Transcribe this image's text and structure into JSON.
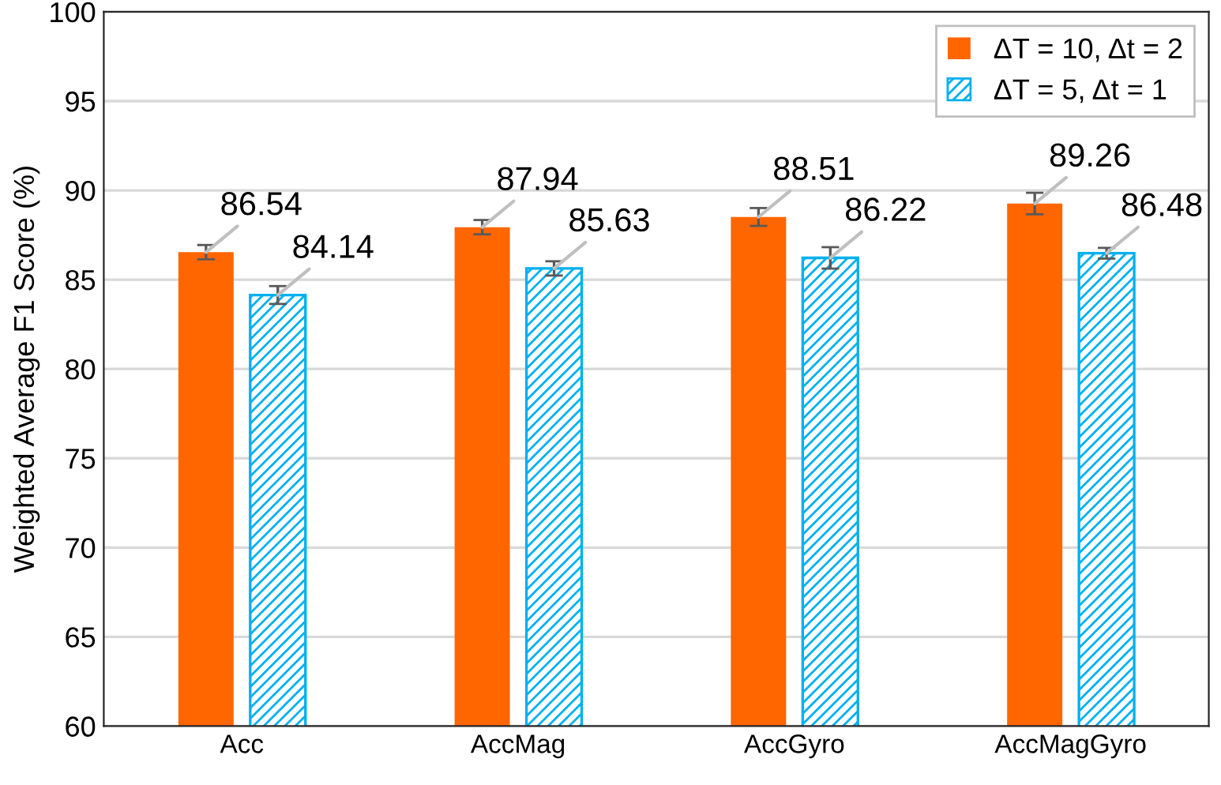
{
  "chart_data": {
    "type": "bar",
    "ylabel": "Weighted Average F1 Score (%)",
    "categories": [
      "Acc",
      "AccMag",
      "AccGyro",
      "AccMagGyro"
    ],
    "series": [
      {
        "name": "ΔT = 10, Δt = 2",
        "color": "#ff6600",
        "values": [
          86.54,
          87.94,
          88.51,
          89.26
        ],
        "errors": [
          0.4,
          0.4,
          0.5,
          0.6
        ]
      },
      {
        "name": "ΔT = 5, Δt = 1",
        "color": "#00b0f0",
        "values": [
          84.14,
          85.63,
          86.22,
          86.48
        ],
        "errors": [
          0.5,
          0.4,
          0.6,
          0.3
        ]
      }
    ],
    "ylim": [
      60,
      100
    ],
    "yticks": [
      60,
      65,
      70,
      75,
      80,
      85,
      90,
      95,
      100
    ],
    "grid": "y",
    "legend": "top right",
    "data_labels": true
  }
}
